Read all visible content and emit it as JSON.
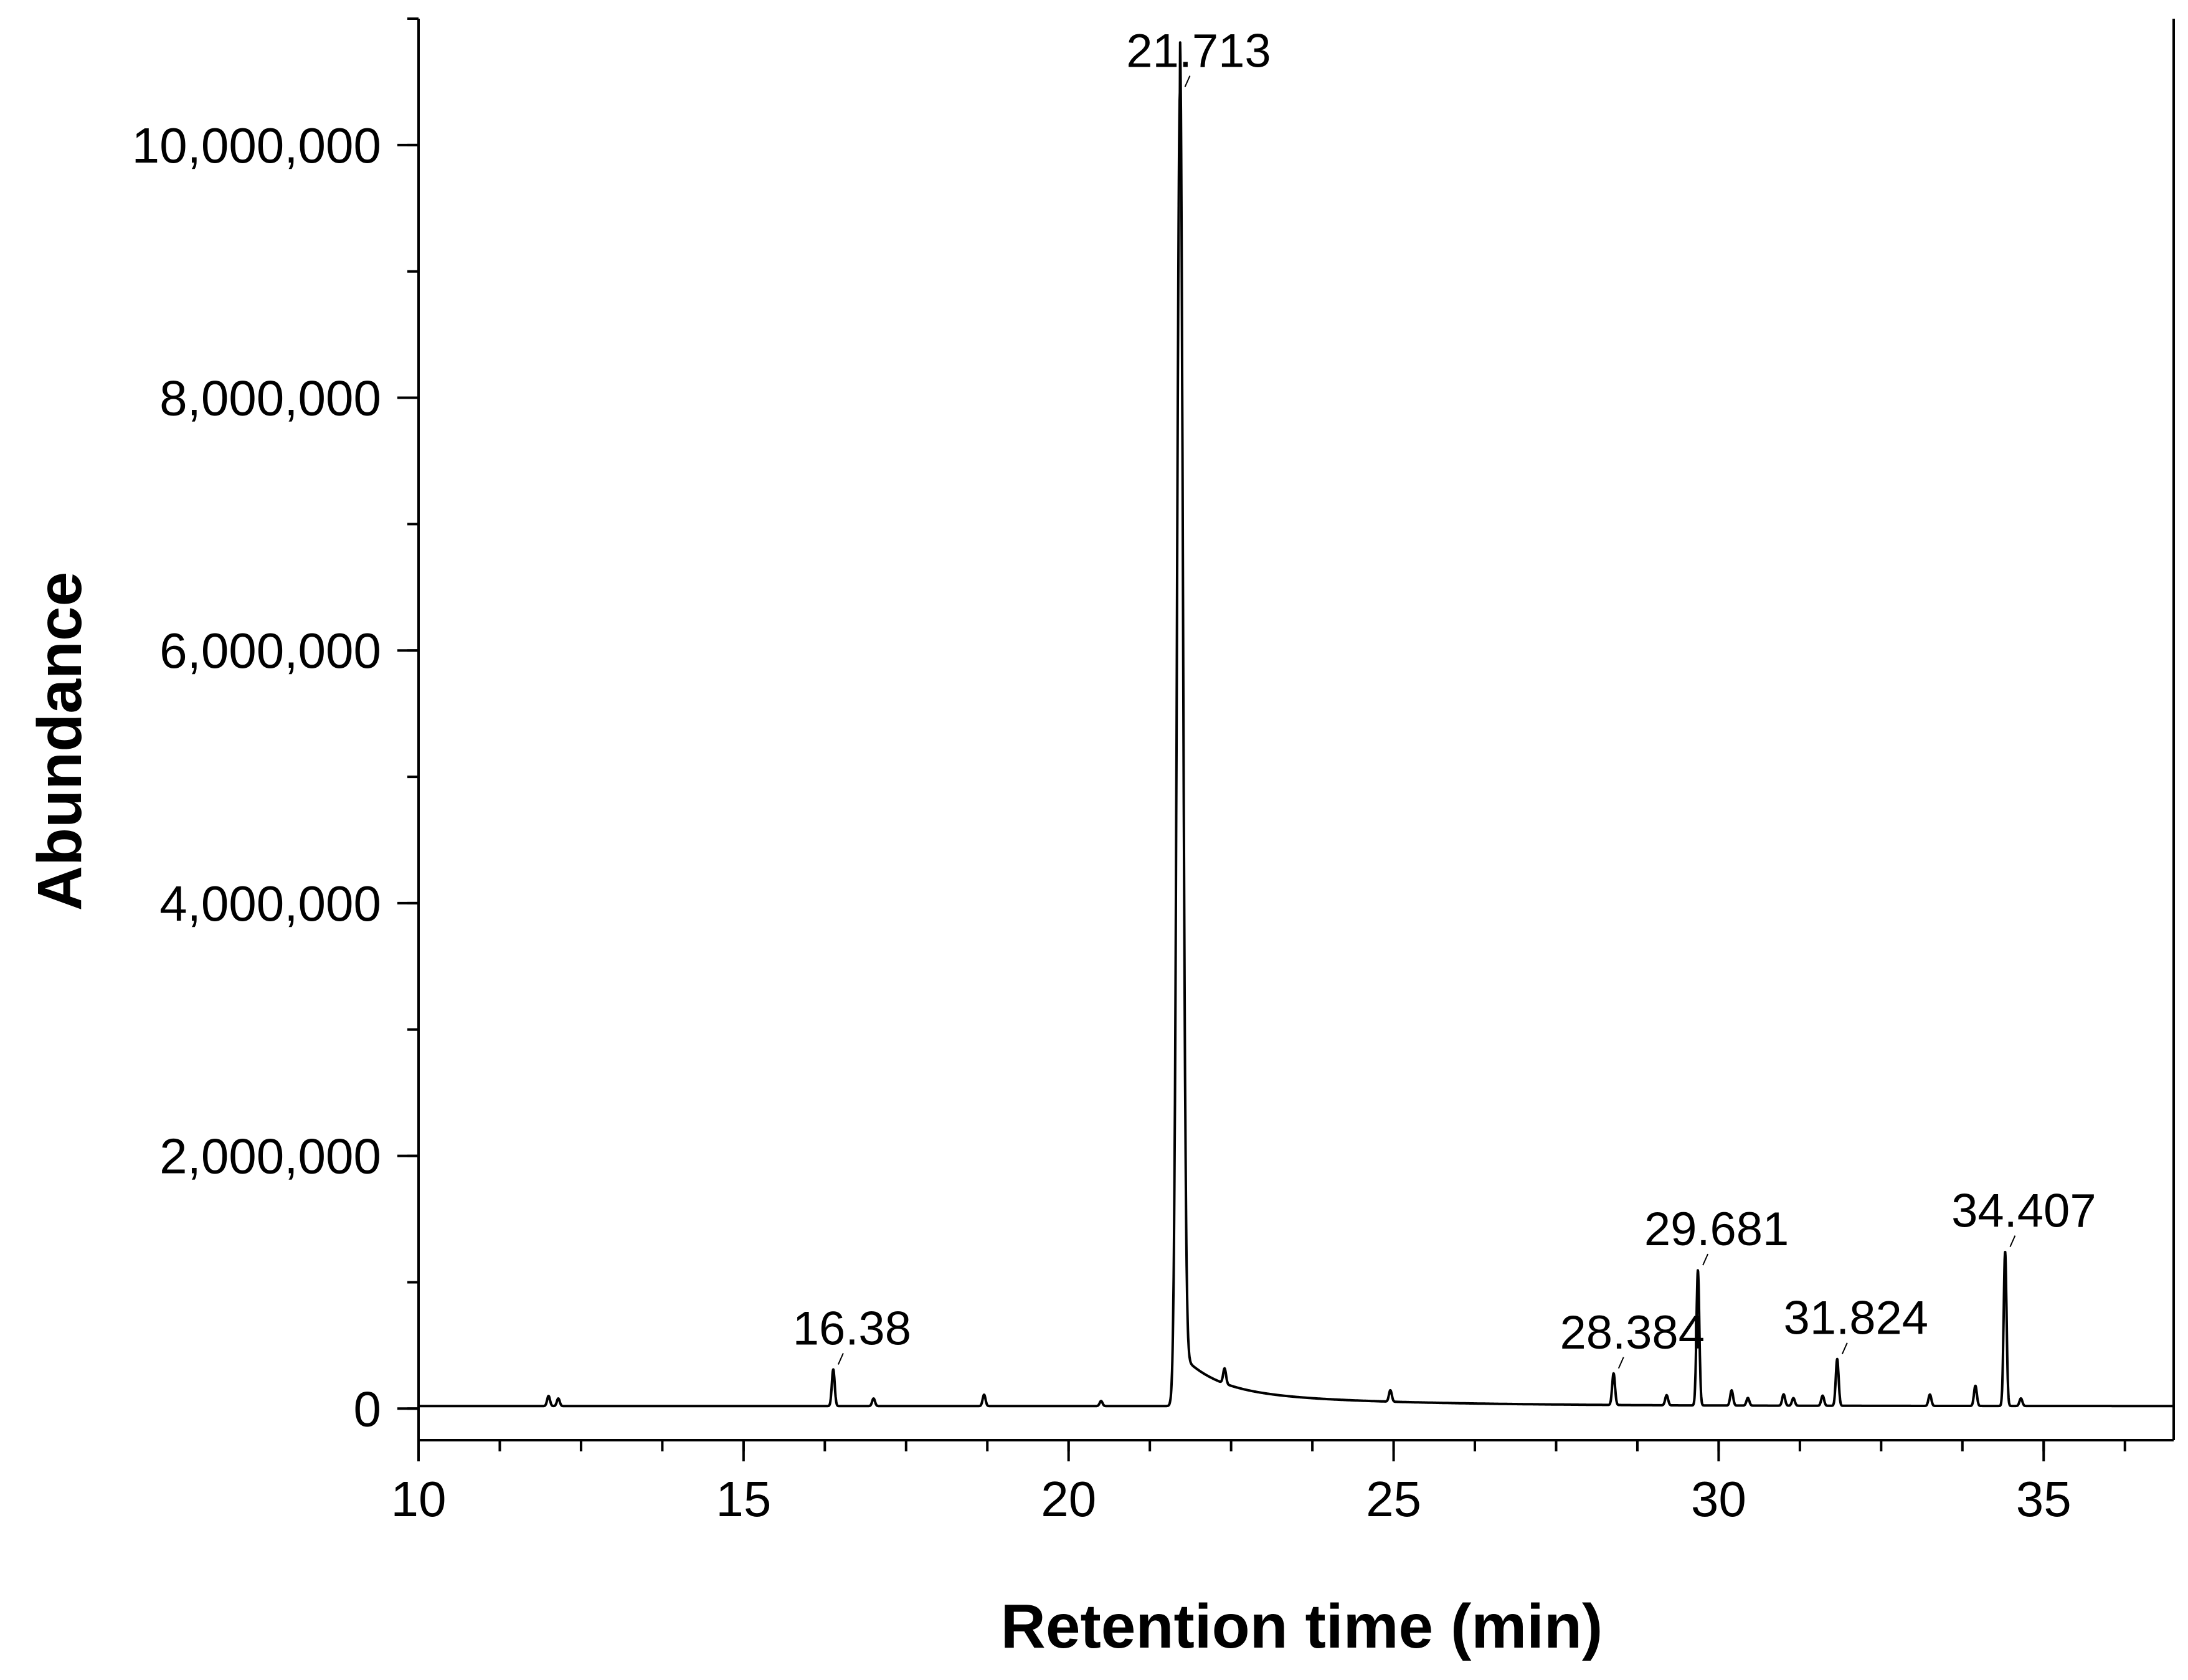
{
  "chart_data": {
    "type": "line",
    "title": "",
    "xlabel": "Retention time (min)",
    "ylabel": "Abundance",
    "xlim": [
      10,
      37
    ],
    "ylim": [
      -250000,
      11000000
    ],
    "x_ticks": [
      10,
      15,
      20,
      25,
      30,
      35
    ],
    "x_tick_labels": [
      "10",
      "15",
      "20",
      "25",
      "30",
      "35"
    ],
    "x_minor_step": 1.25,
    "y_ticks": [
      0,
      2000000,
      4000000,
      6000000,
      8000000,
      10000000
    ],
    "y_tick_labels": [
      "0",
      "2,000,000",
      "4,000,000",
      "6,000,000",
      "8,000,000",
      "10,000,000"
    ],
    "y_minor_step": 1000000,
    "grid": false,
    "legend": "none",
    "line_color": "#000000",
    "baseline": 20000,
    "peaks": [
      {
        "x": 12.0,
        "y": 80000
      },
      {
        "x": 12.15,
        "y": 60000
      },
      {
        "x": 16.38,
        "y": 290000
      },
      {
        "x": 17.0,
        "y": 60000
      },
      {
        "x": 18.7,
        "y": 90000
      },
      {
        "x": 20.5,
        "y": 40000
      },
      {
        "x": 21.713,
        "y": 10400000
      },
      {
        "x": 22.4,
        "y": 120000
      },
      {
        "x": 24.95,
        "y": 90000
      },
      {
        "x": 28.384,
        "y": 250000
      },
      {
        "x": 29.2,
        "y": 80000
      },
      {
        "x": 29.681,
        "y": 1070000
      },
      {
        "x": 30.2,
        "y": 120000
      },
      {
        "x": 30.45,
        "y": 60000
      },
      {
        "x": 31.0,
        "y": 90000
      },
      {
        "x": 31.15,
        "y": 60000
      },
      {
        "x": 31.6,
        "y": 80000
      },
      {
        "x": 31.824,
        "y": 370000
      },
      {
        "x": 33.25,
        "y": 90000
      },
      {
        "x": 33.95,
        "y": 160000
      },
      {
        "x": 34.407,
        "y": 1220000
      },
      {
        "x": 34.65,
        "y": 60000
      }
    ],
    "annotations": [
      {
        "text": "16.38",
        "x": 16.38
      },
      {
        "text": "21.713",
        "x": 21.713
      },
      {
        "text": "28.384",
        "x": 28.384
      },
      {
        "text": "29.681",
        "x": 29.681
      },
      {
        "text": "31.824",
        "x": 31.824
      },
      {
        "text": "34.407",
        "x": 34.407
      }
    ]
  }
}
